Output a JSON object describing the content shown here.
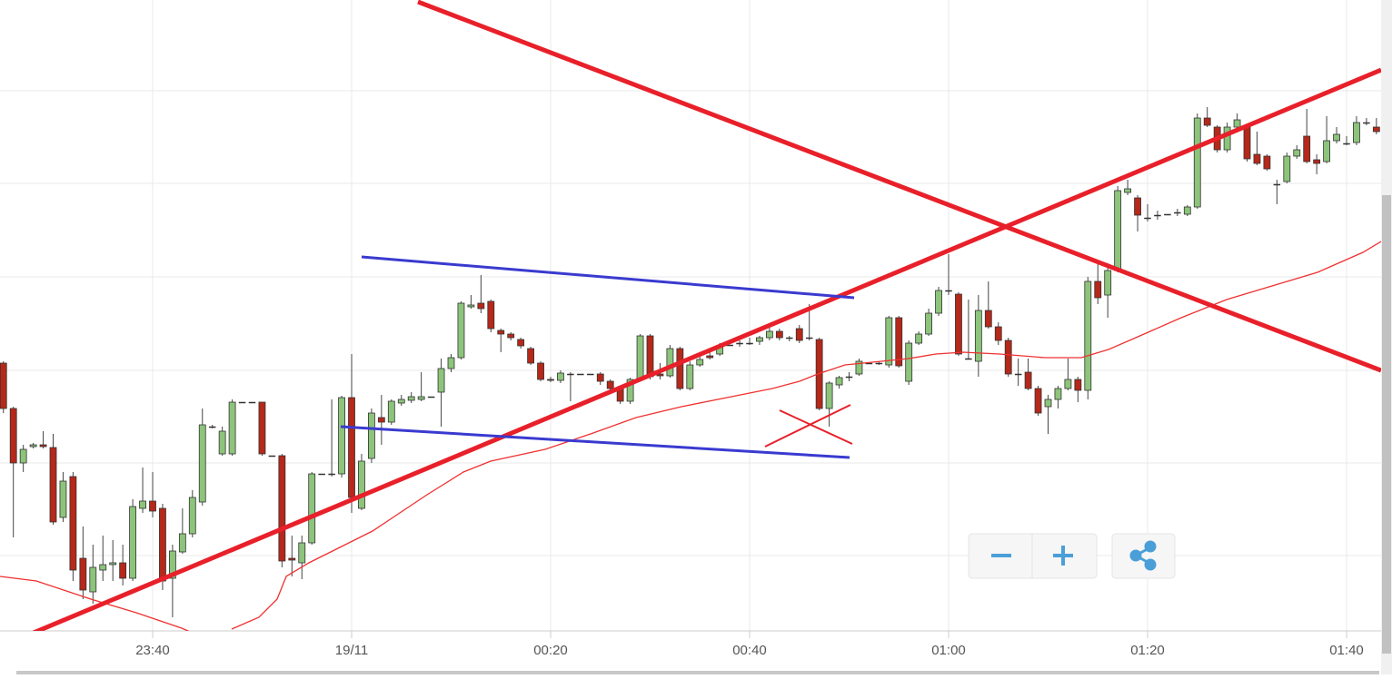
{
  "chart_data": {
    "type": "candlestick",
    "x": [
      "23:25",
      "23:26",
      "23:27",
      "23:28",
      "23:29",
      "23:30",
      "23:31",
      "23:32",
      "23:33",
      "23:34",
      "23:35",
      "23:36",
      "23:37",
      "23:38",
      "23:39",
      "23:40",
      "23:41",
      "23:42",
      "23:43",
      "23:44",
      "23:45",
      "23:46",
      "23:47",
      "23:48",
      "23:49",
      "23:50",
      "23:51",
      "23:52",
      "23:53",
      "23:54",
      "23:55",
      "23:56",
      "23:57",
      "23:58",
      "23:59",
      "00:00",
      "00:01",
      "00:02",
      "00:03",
      "00:04",
      "00:05",
      "00:06",
      "00:07",
      "00:08",
      "00:09",
      "00:10",
      "00:11",
      "00:12",
      "00:13",
      "00:14",
      "00:15",
      "00:16",
      "00:17",
      "00:18",
      "00:19",
      "00:20",
      "00:21",
      "00:22",
      "00:23",
      "00:24",
      "00:25",
      "00:26",
      "00:27",
      "00:28",
      "00:29",
      "00:30",
      "00:31",
      "00:32",
      "00:33",
      "00:34",
      "00:35",
      "00:36",
      "00:37",
      "00:38",
      "00:39",
      "00:40",
      "00:41",
      "00:42",
      "00:43",
      "00:44",
      "00:45",
      "00:46",
      "00:47",
      "00:48",
      "00:49",
      "00:50",
      "00:51",
      "00:52",
      "00:53",
      "00:54",
      "00:55",
      "00:56",
      "00:57",
      "00:58",
      "00:59",
      "01:00",
      "01:01",
      "01:02",
      "01:03",
      "01:04",
      "01:05",
      "01:06",
      "01:07",
      "01:08",
      "01:09",
      "01:10",
      "01:11",
      "01:12",
      "01:13",
      "01:14",
      "01:15",
      "01:16",
      "01:17",
      "01:18",
      "01:19",
      "01:20",
      "01:21",
      "01:22",
      "01:23",
      "01:24",
      "01:25",
      "01:26",
      "01:27",
      "01:28",
      "01:29",
      "01:30",
      "01:31",
      "01:32",
      "01:33",
      "01:34",
      "01:35",
      "01:36",
      "01:37",
      "01:38",
      "01:39",
      "01:40",
      "01:41",
      "01:42",
      "01:43"
    ],
    "open": [
      300,
      250,
      190,
      208,
      210,
      207,
      130,
      175,
      85,
      48,
      72,
      78,
      80,
      63,
      140,
      148,
      140,
      63,
      92,
      112,
      147,
      230,
      200,
      200,
      257,
      257,
      257,
      198,
      198,
      85,
      80,
      102,
      178,
      178,
      178,
      262,
      140,
      195,
      240,
      235,
      256,
      259,
      260,
      263,
      268,
      294,
      306,
      362,
      366,
      368,
      336,
      332,
      326,
      316,
      300,
      282,
      281,
      288,
      288,
      288,
      288,
      280,
      272,
      258,
      282,
      330,
      288,
      286,
      316,
      272,
      298,
      308,
      310,
      320,
      322,
      322,
      324,
      328,
      335,
      328,
      338,
      328,
      326,
      250,
      276,
      285,
      288,
      300,
      300,
      298,
      350,
      280,
      322,
      332,
      355,
      380,
      376,
      305,
      302,
      358,
      340,
      325,
      288,
      290,
      272,
      252,
      260,
      272,
      282,
      270,
      390,
      375,
      402,
      488,
      482,
      460,
      463,
      464,
      466,
      464,
      472,
      570,
      560,
      535,
      560,
      560,
      530,
      528,
      497,
      500,
      528,
      550,
      524,
      522,
      545,
      542,
      543,
      565,
      560
    ],
    "high": [
      302,
      252,
      210,
      212,
      225,
      222,
      180,
      180,
      120,
      100,
      110,
      105,
      100,
      150,
      185,
      180,
      145,
      100,
      140,
      160,
      250,
      232,
      230,
      260,
      257,
      257,
      257,
      198,
      200,
      110,
      110,
      180,
      178,
      260,
      264,
      310,
      200,
      250,
      265,
      260,
      265,
      268,
      290,
      263,
      305,
      310,
      368,
      375,
      397,
      370,
      338,
      334,
      328,
      318,
      302,
      285,
      292,
      290,
      288,
      288,
      290,
      282,
      274,
      284,
      332,
      332,
      300,
      320,
      318,
      302,
      308,
      312,
      322,
      320,
      325,
      328,
      330,
      340,
      338,
      330,
      342,
      365,
      328,
      280,
      286,
      290,
      305,
      300,
      302,
      352,
      352,
      325,
      335,
      360,
      384,
      420,
      378,
      370,
      375,
      390,
      345,
      328,
      305,
      305,
      275,
      265,
      275,
      305,
      285,
      395,
      410,
      410,
      495,
      502,
      485,
      475,
      468,
      464,
      470,
      474,
      575,
      582,
      562,
      565,
      575,
      562,
      555,
      530,
      502,
      532,
      540,
      580,
      530,
      572,
      560,
      550,
      572,
      570,
      570
    ],
    "low": [
      245,
      108,
      180,
      206,
      206,
      122,
      125,
      60,
      40,
      35,
      60,
      60,
      55,
      60,
      135,
      130,
      50,
      20,
      90,
      108,
      143,
      228,
      198,
      198,
      257,
      257,
      198,
      198,
      75,
      65,
      62,
      100,
      178,
      175,
      174,
      135,
      138,
      190,
      210,
      232,
      253,
      256,
      258,
      263,
      230,
      290,
      304,
      360,
      355,
      334,
      312,
      325,
      316,
      298,
      280,
      279,
      278,
      258,
      288,
      288,
      276,
      270,
      255,
      255,
      280,
      282,
      282,
      284,
      270,
      270,
      296,
      304,
      308,
      320,
      318,
      320,
      320,
      325,
      325,
      324,
      322,
      325,
      248,
      230,
      272,
      280,
      286,
      300,
      298,
      295,
      295,
      276,
      320,
      330,
      352,
      375,
      308,
      304,
      285,
      338,
      320,
      285,
      275,
      270,
      242,
      222,
      250,
      270,
      257,
      260,
      365,
      350,
      400,
      485,
      445,
      456,
      458,
      464,
      462,
      462,
      470,
      560,
      532,
      532,
      555,
      522,
      518,
      512,
      475,
      498,
      525,
      520,
      508,
      520,
      542,
      540,
      540,
      562,
      552
    ],
    "close": [
      250,
      190,
      205,
      210,
      208,
      125,
      170,
      72,
      50,
      75,
      78,
      80,
      63,
      142,
      148,
      137,
      60,
      93,
      112,
      152,
      232,
      230,
      225,
      257,
      257,
      257,
      200,
      198,
      82,
      83,
      102,
      178,
      178,
      178,
      262,
      152,
      192,
      245,
      235,
      258,
      260,
      263,
      263,
      263,
      294,
      306,
      366,
      364,
      360,
      338,
      332,
      328,
      319,
      300,
      282,
      281,
      289,
      288,
      288,
      288,
      280,
      272,
      258,
      282,
      330,
      285,
      286,
      316,
      272,
      298,
      304,
      306,
      318,
      320,
      322,
      322,
      328,
      335,
      328,
      328,
      325,
      328,
      250,
      278,
      284,
      285,
      302,
      300,
      300,
      350,
      297,
      322,
      332,
      355,
      380,
      380,
      310,
      305,
      358,
      340,
      325,
      288,
      288,
      272,
      245,
      260,
      272,
      282,
      270,
      390,
      372,
      402,
      490,
      492,
      463,
      460,
      463,
      464,
      466,
      472,
      570,
      562,
      535,
      560,
      568,
      525,
      520,
      514,
      497,
      528,
      535,
      522,
      520,
      545,
      552,
      542,
      565,
      565,
      555
    ],
    "up_color": "#8dc47b",
    "down_color": "#b5281a",
    "xlim": [
      "23:24",
      "01:43"
    ],
    "ylim": [
      0,
      700
    ],
    "xticks": [
      "23:40",
      {
        "value": "00:00",
        "label": "19/11"
      },
      "00:20",
      "00:40",
      "01:00",
      "01:20",
      "01:40"
    ]
  }
}
